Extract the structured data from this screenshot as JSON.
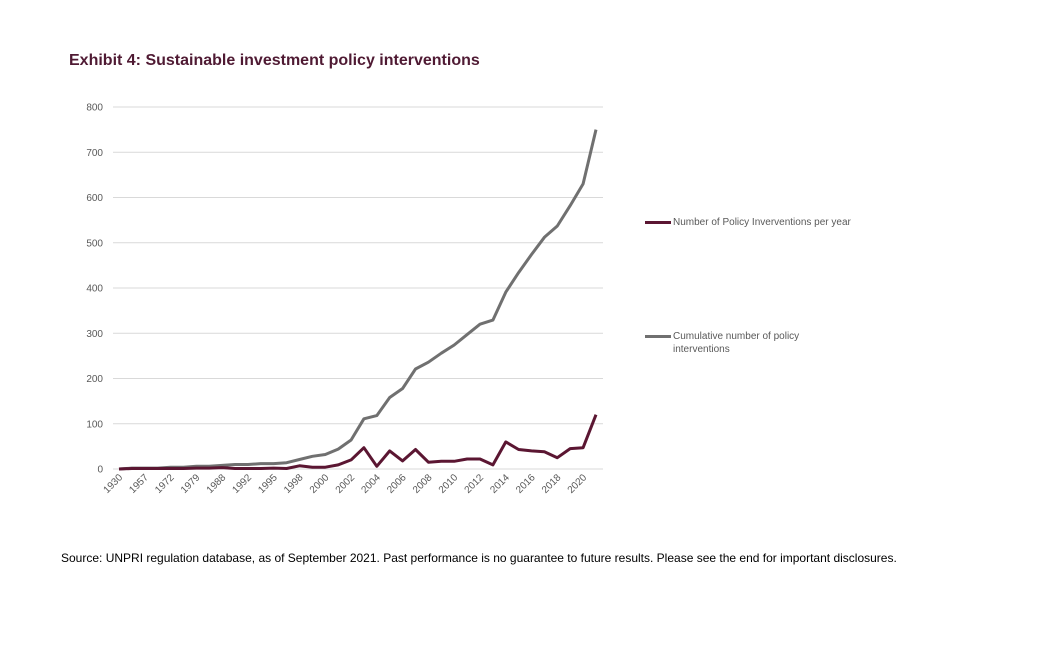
{
  "title": "Exhibit 4: Sustainable investment policy interventions",
  "source": "Source: UNPRI regulation database, as of September 2021. Past performance is no guarantee to future results. Please see the end for important disclosures.",
  "chart_data": {
    "type": "line",
    "title": "Exhibit 4: Sustainable investment policy interventions",
    "xlabel": "",
    "ylabel": "",
    "ylim": [
      0,
      800
    ],
    "yticks": [
      "0",
      "100",
      "200",
      "300",
      "400",
      "500",
      "600",
      "700",
      "800"
    ],
    "x_tick_labels": [
      "1930",
      "1957",
      "1972",
      "1979",
      "1988",
      "1992",
      "1995",
      "1998",
      "2000",
      "2002",
      "2004",
      "2006",
      "2008",
      "2010",
      "2012",
      "2014",
      "2016",
      "2018",
      "2020"
    ],
    "x_tick_every": 2,
    "grid": true,
    "legend_position": "right",
    "series": [
      {
        "name": "Number of Policy Inverventions per year",
        "color": "#5b1632",
        "values": [
          0,
          1,
          1,
          1,
          1,
          1,
          2,
          2,
          3,
          1,
          1,
          1,
          2,
          1,
          7,
          4,
          4,
          9,
          20,
          47,
          6,
          40,
          18,
          43,
          15,
          17,
          17,
          22,
          22,
          9,
          60,
          43,
          40,
          38,
          25,
          45,
          47,
          120
        ]
      },
      {
        "name": "Cumulative number of policy interventions",
        "color": "#707070",
        "values": [
          0,
          2,
          2,
          2,
          4,
          4,
          6,
          6,
          8,
          10,
          10,
          12,
          12,
          14,
          21,
          28,
          32,
          44,
          64,
          111,
          118,
          158,
          178,
          221,
          236,
          256,
          274,
          297,
          320,
          329,
          391,
          434,
          474,
          512,
          537,
          582,
          630,
          750
        ]
      }
    ]
  }
}
